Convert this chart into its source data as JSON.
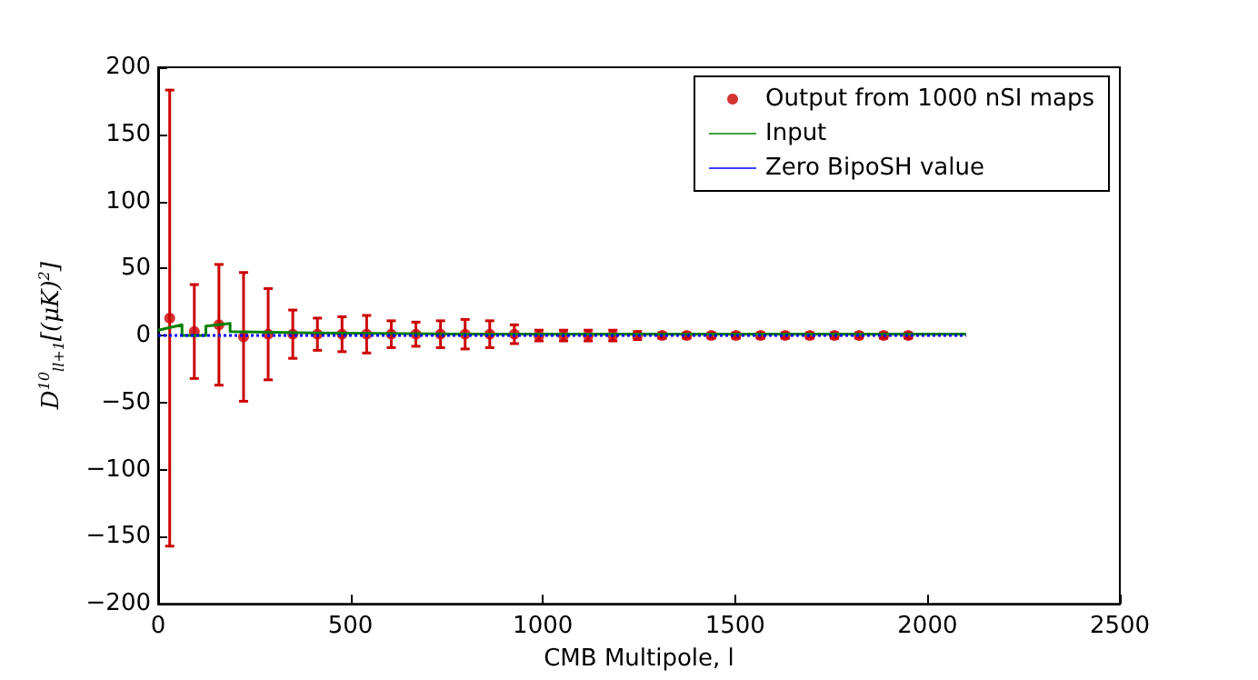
{
  "chart_data": {
    "type": "scatter",
    "xlabel": "CMB Multipole, l",
    "ylabel": "D$^{10}$$_{ll+1}$[(μK)$^{2}$]",
    "xlim": [
      0,
      2500
    ],
    "xticks": [
      0,
      500,
      1000,
      1500,
      2000,
      2500
    ],
    "ylim": [
      -200,
      200
    ],
    "yticks": [
      -200,
      -150,
      -100,
      -50,
      0,
      50,
      100,
      150,
      200
    ],
    "legend": "top right",
    "series": [
      {
        "name": "Output from 1000 nSI maps",
        "type": "scatter",
        "marker": "circle",
        "color": "#cc0000",
        "x": [
          30,
          94,
          158,
          222,
          286,
          350,
          414,
          478,
          542,
          606,
          670,
          734,
          798,
          862,
          926,
          990,
          1054,
          1118,
          1182,
          1246,
          1310,
          1374,
          1438,
          1502,
          1566,
          1630,
          1694,
          1758,
          1822,
          1886,
          1950
        ],
        "values": [
          13,
          3,
          8,
          -1,
          1,
          1,
          1,
          1,
          1,
          1,
          1,
          1,
          1,
          1,
          1,
          0,
          0,
          0,
          0,
          0,
          0,
          0,
          0,
          0,
          0,
          0,
          0,
          0,
          0,
          0,
          0
        ],
        "errors": [
          170,
          35,
          45,
          48,
          34,
          18,
          12,
          13,
          14,
          10,
          9,
          10,
          11,
          10,
          7,
          4,
          4,
          4,
          4,
          3,
          2,
          2,
          2,
          2,
          2,
          2,
          2,
          2,
          2,
          2,
          2
        ]
      },
      {
        "name": "Input",
        "type": "line",
        "marker": "none",
        "color": "#008000",
        "x": [
          0,
          62,
          62,
          124,
          124,
          187,
          187,
          400,
          800,
          2100
        ],
        "values": [
          4,
          8,
          0,
          0,
          7,
          9,
          3,
          2,
          1,
          1
        ]
      },
      {
        "name": "Zero BipoSH value",
        "type": "line",
        "marker": "none",
        "color": "#0000ff",
        "line_style": "dotted",
        "x": [
          0,
          2100
        ],
        "values": [
          0,
          0
        ]
      }
    ]
  }
}
